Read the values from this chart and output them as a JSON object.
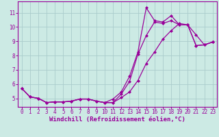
{
  "background_color": "#cceae4",
  "grid_color": "#aacccc",
  "line_color": "#990099",
  "marker": "D",
  "markersize": 2,
  "linewidth": 0.9,
  "xlabel": "Windchill (Refroidissement éolien,°C)",
  "xlabel_fontsize": 6.5,
  "tick_fontsize": 5.5,
  "xlim": [
    -0.5,
    23.5
  ],
  "ylim": [
    4.4,
    11.8
  ],
  "yticks": [
    5,
    6,
    7,
    8,
    9,
    10,
    11
  ],
  "xticks": [
    0,
    1,
    2,
    3,
    4,
    5,
    6,
    7,
    8,
    9,
    10,
    11,
    12,
    13,
    14,
    15,
    16,
    17,
    18,
    19,
    20,
    21,
    22,
    23
  ],
  "series1_x": [
    0,
    1,
    2,
    3,
    4,
    5,
    6,
    7,
    8,
    9,
    10,
    11,
    12,
    13,
    14,
    15,
    16,
    17,
    18,
    19,
    20,
    21,
    22,
    23
  ],
  "series1_y": [
    5.7,
    5.1,
    5.0,
    4.7,
    4.75,
    4.75,
    4.8,
    4.95,
    4.95,
    4.8,
    4.7,
    4.7,
    5.3,
    6.2,
    8.1,
    9.4,
    10.35,
    10.25,
    10.45,
    10.15,
    10.15,
    8.7,
    8.75,
    8.95
  ],
  "series2_x": [
    0,
    1,
    2,
    3,
    4,
    5,
    6,
    7,
    8,
    9,
    10,
    11,
    12,
    13,
    14,
    15,
    16,
    17,
    18,
    19,
    20,
    21,
    22,
    23
  ],
  "series2_y": [
    5.7,
    5.1,
    5.0,
    4.7,
    4.75,
    4.75,
    4.8,
    4.95,
    4.95,
    4.8,
    4.7,
    4.95,
    5.45,
    6.55,
    8.25,
    11.35,
    10.45,
    10.35,
    10.8,
    10.15,
    10.15,
    9.45,
    8.75,
    8.95
  ],
  "series3_x": [
    0,
    1,
    2,
    3,
    4,
    5,
    6,
    7,
    8,
    9,
    10,
    11,
    12,
    13,
    14,
    15,
    16,
    17,
    18,
    19,
    20,
    21,
    22,
    23
  ],
  "series3_y": [
    5.7,
    5.1,
    5.0,
    4.7,
    4.75,
    4.75,
    4.8,
    4.95,
    4.95,
    4.8,
    4.7,
    4.7,
    5.05,
    5.45,
    6.25,
    7.45,
    8.25,
    9.15,
    9.75,
    10.25,
    10.15,
    8.7,
    8.75,
    8.95
  ]
}
